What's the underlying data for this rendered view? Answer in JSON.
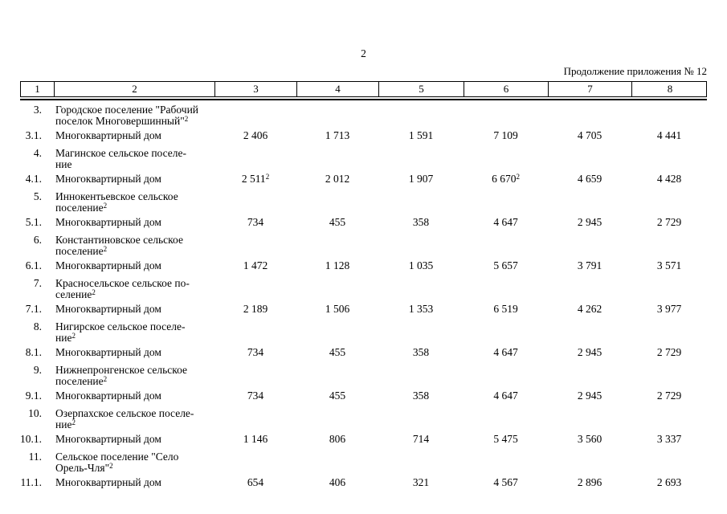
{
  "page": {
    "number": "2",
    "continuation": "Продолжение приложения № 12"
  },
  "table": {
    "column_numbers": [
      "1",
      "2",
      "3",
      "4",
      "5",
      "6",
      "7",
      "8"
    ],
    "rows": [
      {
        "type": "section",
        "num": "3.",
        "name_lines": [
          "Городское поселение \"Рабочий",
          "поселок Многовершинный\""
        ],
        "sup": "2"
      },
      {
        "type": "data",
        "num": "3.1.",
        "name_lines": [
          "Многоквартирный дом"
        ],
        "values": [
          {
            "v": "2 406"
          },
          {
            "v": "1 713"
          },
          {
            "v": "1 591"
          },
          {
            "v": "7 109"
          },
          {
            "v": "4 705"
          },
          {
            "v": "4 441"
          }
        ]
      },
      {
        "type": "section",
        "num": "4.",
        "name_lines": [
          "Магинское сельское поселе-",
          "ние"
        ]
      },
      {
        "type": "data",
        "num": "4.1.",
        "name_lines": [
          "Многоквартирный дом"
        ],
        "values": [
          {
            "v": "2 511",
            "sup": "2"
          },
          {
            "v": "2 012"
          },
          {
            "v": "1 907"
          },
          {
            "v": "6 670",
            "sup": "2"
          },
          {
            "v": "4 659"
          },
          {
            "v": "4 428"
          }
        ]
      },
      {
        "type": "section",
        "num": "5.",
        "name_lines": [
          "Иннокентьевское сельское",
          "поселение"
        ],
        "sup": "2"
      },
      {
        "type": "data",
        "num": "5.1.",
        "name_lines": [
          "Многоквартирный дом"
        ],
        "values": [
          {
            "v": "734"
          },
          {
            "v": "455"
          },
          {
            "v": "358"
          },
          {
            "v": "4 647"
          },
          {
            "v": "2 945"
          },
          {
            "v": "2 729"
          }
        ]
      },
      {
        "type": "section",
        "num": "6.",
        "name_lines": [
          "Константиновское сельское",
          "поселение"
        ],
        "sup": "2"
      },
      {
        "type": "data",
        "num": "6.1.",
        "name_lines": [
          "Многоквартирный дом"
        ],
        "values": [
          {
            "v": "1 472"
          },
          {
            "v": "1 128"
          },
          {
            "v": "1 035"
          },
          {
            "v": "5 657"
          },
          {
            "v": "3 791"
          },
          {
            "v": "3 571"
          }
        ]
      },
      {
        "type": "section",
        "num": "7.",
        "name_lines": [
          "Красносельское сельское по-",
          "селение"
        ],
        "sup": "2"
      },
      {
        "type": "data",
        "num": "7.1.",
        "name_lines": [
          "Многоквартирный дом"
        ],
        "values": [
          {
            "v": "2 189"
          },
          {
            "v": "1 506"
          },
          {
            "v": "1 353"
          },
          {
            "v": "6 519"
          },
          {
            "v": "4 262"
          },
          {
            "v": "3 977"
          }
        ]
      },
      {
        "type": "section",
        "num": "8.",
        "name_lines": [
          "Нигирское сельское поселе-",
          "ние"
        ],
        "sup": "2"
      },
      {
        "type": "data",
        "num": "8.1.",
        "name_lines": [
          "Многоквартирный дом"
        ],
        "values": [
          {
            "v": "734"
          },
          {
            "v": "455"
          },
          {
            "v": "358"
          },
          {
            "v": "4 647"
          },
          {
            "v": "2 945"
          },
          {
            "v": "2 729"
          }
        ]
      },
      {
        "type": "section",
        "num": "9.",
        "name_lines": [
          "Нижнепронгенское сельское",
          "поселение"
        ],
        "sup": "2"
      },
      {
        "type": "data",
        "num": "9.1.",
        "name_lines": [
          "Многоквартирный дом"
        ],
        "values": [
          {
            "v": "734"
          },
          {
            "v": "455"
          },
          {
            "v": "358"
          },
          {
            "v": "4 647"
          },
          {
            "v": "2 945"
          },
          {
            "v": "2 729"
          }
        ]
      },
      {
        "type": "section",
        "num": "10.",
        "name_lines": [
          "Озерпахское сельское поселе-",
          "ние"
        ],
        "sup": "2"
      },
      {
        "type": "data",
        "num": "10.1.",
        "name_lines": [
          "Многоквартирный дом"
        ],
        "values": [
          {
            "v": "1 146"
          },
          {
            "v": "806"
          },
          {
            "v": "714"
          },
          {
            "v": "5 475"
          },
          {
            "v": "3 560"
          },
          {
            "v": "3 337"
          }
        ]
      },
      {
        "type": "section",
        "num": "11.",
        "name_lines": [
          "Сельское поселение \"Село",
          "Орель-Чля\""
        ],
        "sup": "2"
      },
      {
        "type": "data",
        "num": "11.1.",
        "name_lines": [
          "Многоквартирный дом"
        ],
        "values": [
          {
            "v": "654"
          },
          {
            "v": "406"
          },
          {
            "v": "321"
          },
          {
            "v": "4 567"
          },
          {
            "v": "2 896"
          },
          {
            "v": "2 693"
          }
        ]
      }
    ]
  }
}
